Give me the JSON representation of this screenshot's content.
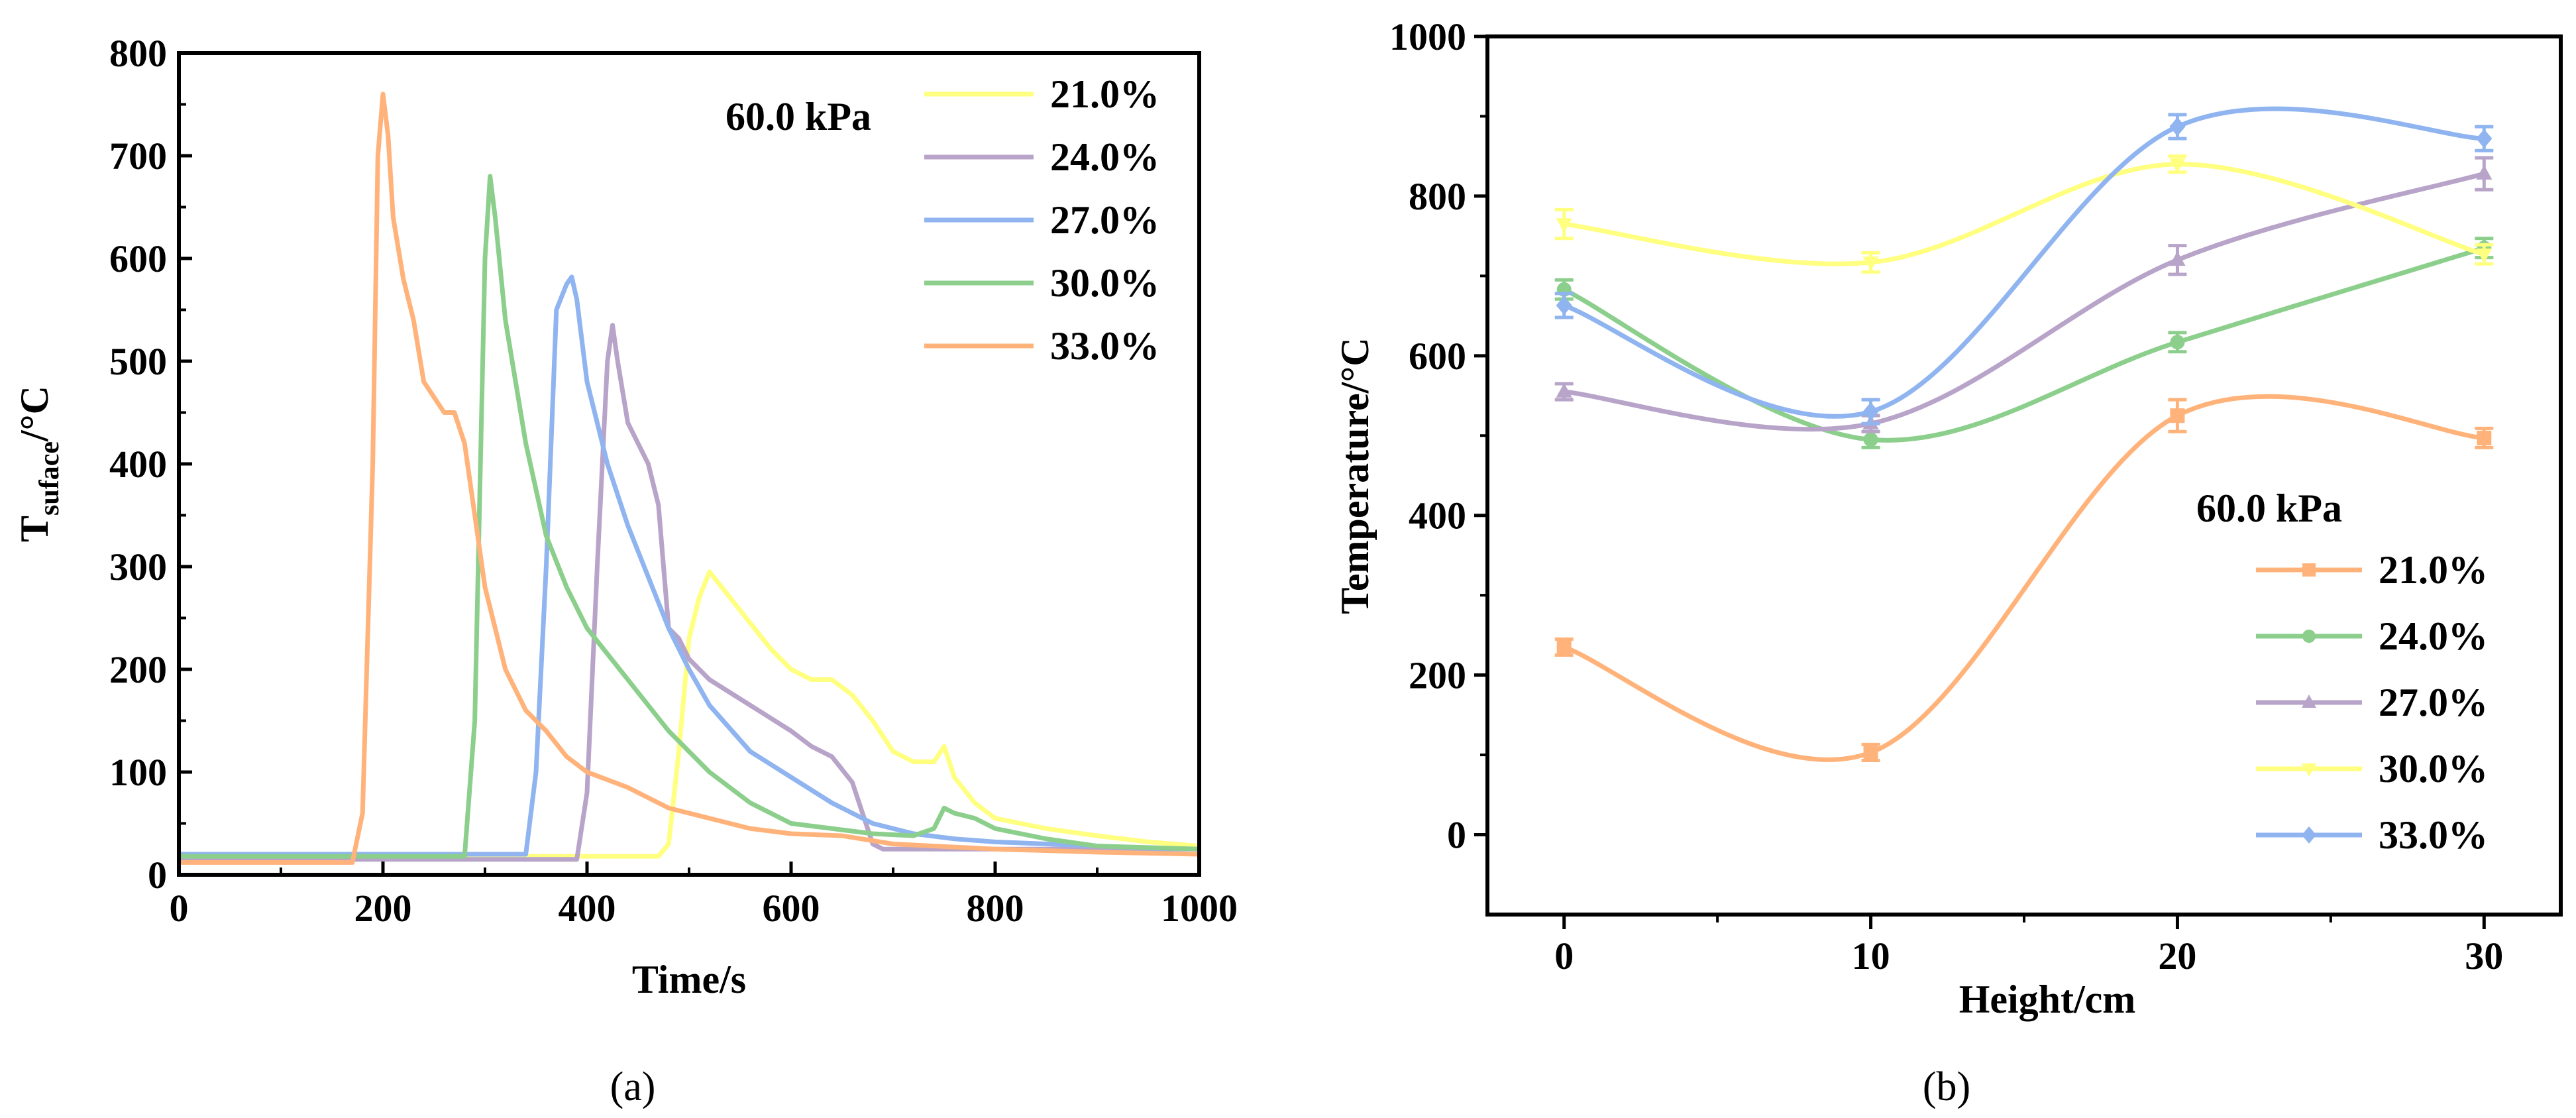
{
  "chart_data": [
    {
      "type": "line",
      "panel_label": "(a)",
      "xlabel": "Time/s",
      "ylabel_main": "T",
      "ylabel_sub": "suface",
      "ylabel_unit": "/°C",
      "xlim": [
        0,
        1000
      ],
      "ylim": [
        0,
        800
      ],
      "xticks": [
        "0",
        "200",
        "400",
        "600",
        "800",
        "1000"
      ],
      "yticks": [
        "0",
        "100",
        "200",
        "300",
        "400",
        "500",
        "600",
        "700",
        "800"
      ],
      "legend_title": "60.0 kPa",
      "legend_position": "top-right",
      "series": [
        {
          "name": "21.0%",
          "color": "#FFFF80",
          "x": [
            0,
            470,
            480,
            490,
            500,
            510,
            520,
            540,
            560,
            580,
            600,
            620,
            640,
            660,
            680,
            700,
            720,
            740,
            750,
            760,
            780,
            800,
            850,
            900,
            950,
            1000
          ],
          "y": [
            18,
            18,
            30,
            120,
            230,
            270,
            295,
            270,
            245,
            220,
            200,
            190,
            190,
            175,
            150,
            120,
            110,
            110,
            125,
            95,
            70,
            55,
            45,
            38,
            32,
            28
          ]
        },
        {
          "name": "24.0%",
          "color": "#B8A4C9",
          "x": [
            0,
            390,
            400,
            410,
            420,
            425,
            430,
            440,
            450,
            460,
            470,
            480,
            490,
            500,
            520,
            560,
            600,
            620,
            640,
            660,
            680,
            690,
            700,
            750,
            800,
            900,
            1000
          ],
          "y": [
            15,
            15,
            80,
            300,
            500,
            535,
            500,
            440,
            420,
            400,
            360,
            240,
            230,
            210,
            190,
            165,
            140,
            125,
            115,
            90,
            30,
            25,
            25,
            25,
            25,
            25,
            25
          ]
        },
        {
          "name": "27.0%",
          "color": "#8FB4F0",
          "x": [
            0,
            340,
            350,
            360,
            370,
            380,
            385,
            390,
            400,
            420,
            440,
            460,
            480,
            500,
            520,
            560,
            600,
            640,
            680,
            720,
            760,
            800,
            850,
            900,
            950,
            1000
          ],
          "y": [
            20,
            20,
            100,
            300,
            550,
            575,
            582,
            560,
            480,
            400,
            340,
            290,
            240,
            200,
            165,
            120,
            95,
            70,
            50,
            40,
            35,
            32,
            30,
            28,
            26,
            25
          ]
        },
        {
          "name": "30.0%",
          "color": "#8CCF8C",
          "x": [
            0,
            280,
            290,
            300,
            305,
            310,
            320,
            330,
            340,
            360,
            380,
            400,
            440,
            480,
            520,
            560,
            600,
            640,
            680,
            720,
            740,
            750,
            760,
            780,
            800,
            850,
            900,
            1000
          ],
          "y": [
            18,
            18,
            150,
            600,
            680,
            640,
            540,
            480,
            420,
            330,
            280,
            240,
            190,
            140,
            100,
            70,
            50,
            45,
            40,
            38,
            45,
            65,
            60,
            55,
            45,
            35,
            28,
            25
          ]
        },
        {
          "name": "33.0%",
          "color": "#FFB37A",
          "x": [
            0,
            170,
            180,
            190,
            195,
            200,
            205,
            210,
            220,
            230,
            240,
            260,
            270,
            280,
            290,
            300,
            320,
            340,
            360,
            380,
            400,
            440,
            480,
            520,
            560,
            600,
            650,
            700,
            800,
            900,
            1000
          ],
          "y": [
            12,
            12,
            60,
            400,
            700,
            760,
            720,
            640,
            580,
            540,
            480,
            450,
            450,
            420,
            350,
            280,
            200,
            160,
            140,
            115,
            100,
            85,
            65,
            55,
            45,
            40,
            38,
            30,
            25,
            22,
            20
          ]
        }
      ]
    },
    {
      "type": "line",
      "panel_label": "(b)",
      "xlabel": "Height/cm",
      "ylabel": "Temperature/°C",
      "xlim": [
        -2.5,
        32.5
      ],
      "ylim": [
        -100,
        1000
      ],
      "xticks": [
        "0",
        "10",
        "20",
        "30"
      ],
      "yticks": [
        "0",
        "200",
        "400",
        "600",
        "800",
        "1000"
      ],
      "legend_title": "60.0 kPa",
      "legend_position": "bottom-right",
      "series": [
        {
          "name": "21.0%",
          "color": "#FFB37A",
          "marker": "square",
          "x": [
            0,
            10,
            20,
            30
          ],
          "y": [
            235,
            103,
            525,
            497
          ],
          "err": [
            10,
            10,
            20,
            12
          ]
        },
        {
          "name": "24.0%",
          "color": "#8CCF8C",
          "marker": "circle",
          "x": [
            0,
            10,
            20,
            30
          ],
          "y": [
            683,
            495,
            617,
            735
          ],
          "err": [
            12,
            10,
            12,
            12
          ]
        },
        {
          "name": "27.0%",
          "color": "#B8A4C9",
          "marker": "triangle-up",
          "x": [
            0,
            10,
            20,
            30
          ],
          "y": [
            555,
            515,
            720,
            828
          ],
          "err": [
            10,
            10,
            18,
            20
          ]
        },
        {
          "name": "30.0%",
          "color": "#FFFF80",
          "marker": "triangle-down",
          "x": [
            0,
            10,
            20,
            30
          ],
          "y": [
            765,
            717,
            840,
            727
          ],
          "err": [
            18,
            12,
            10,
            12
          ]
        },
        {
          "name": "33.0%",
          "color": "#8FB4F0",
          "marker": "diamond",
          "x": [
            0,
            10,
            20,
            30
          ],
          "y": [
            663,
            530,
            887,
            872
          ],
          "err": [
            15,
            15,
            15,
            15
          ]
        }
      ]
    }
  ]
}
